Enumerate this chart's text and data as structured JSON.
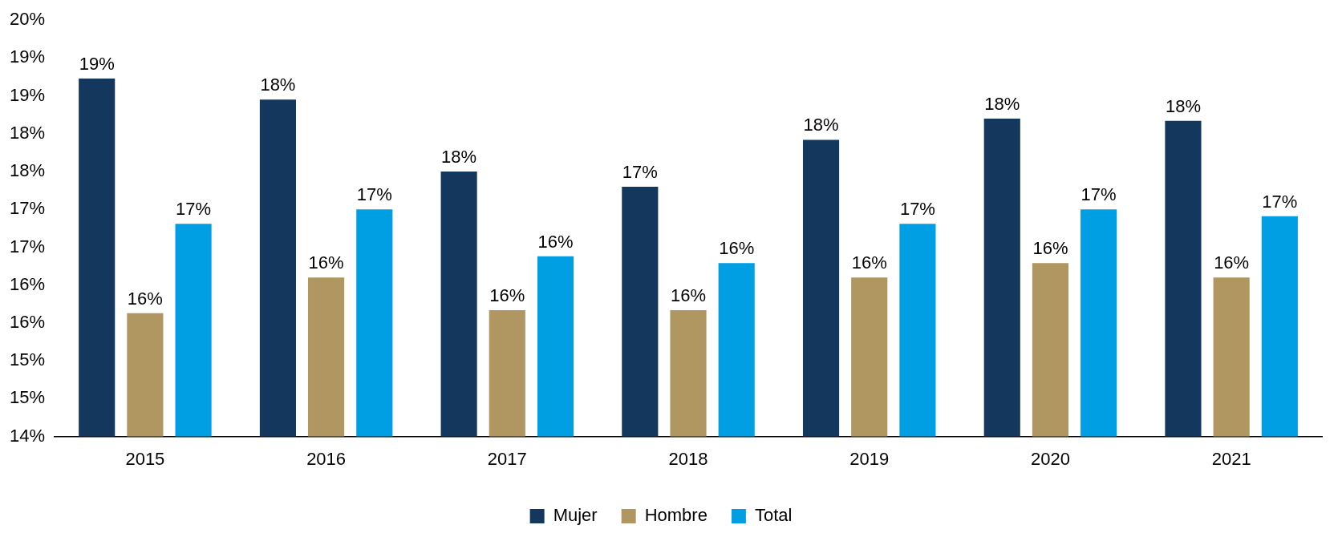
{
  "chart_data": {
    "type": "bar",
    "categories": [
      "2015",
      "2016",
      "2017",
      "2018",
      "2019",
      "2020",
      "2021"
    ],
    "series": [
      {
        "name": "Mujer",
        "color": "#14375e",
        "values": [
          18.73,
          18.45,
          17.5,
          17.3,
          17.92,
          18.2,
          18.17
        ],
        "value_labels": [
          "19%",
          "18%",
          "18%",
          "17%",
          "18%",
          "18%",
          "18%"
        ]
      },
      {
        "name": "Hombre",
        "color": "#b09660",
        "values": [
          15.63,
          16.1,
          15.67,
          15.67,
          16.1,
          16.29,
          16.1
        ],
        "value_labels": [
          "16%",
          "16%",
          "16%",
          "16%",
          "16%",
          "16%",
          "16%"
        ]
      },
      {
        "name": "Total",
        "color": "#009fe3",
        "values": [
          16.81,
          17.0,
          16.38,
          16.29,
          16.81,
          17.0,
          16.91
        ],
        "value_labels": [
          "17%",
          "17%",
          "16%",
          "16%",
          "17%",
          "17%",
          "17%"
        ]
      }
    ],
    "ylim": [
      14,
      19.5
    ],
    "yticks": [
      {
        "value": 14,
        "label": "14%"
      },
      {
        "value": 14.5,
        "label": "15%"
      },
      {
        "value": 15,
        "label": "15%"
      },
      {
        "value": 15.5,
        "label": "16%"
      },
      {
        "value": 16,
        "label": "16%"
      },
      {
        "value": 16.5,
        "label": "17%"
      },
      {
        "value": 17,
        "label": "17%"
      },
      {
        "value": 17.5,
        "label": "18%"
      },
      {
        "value": 18,
        "label": "18%"
      },
      {
        "value": 18.5,
        "label": "19%"
      },
      {
        "value": 19,
        "label": "19%"
      },
      {
        "value": 19.5,
        "label": "20%"
      }
    ],
    "grid": false,
    "legend": "bottom"
  }
}
